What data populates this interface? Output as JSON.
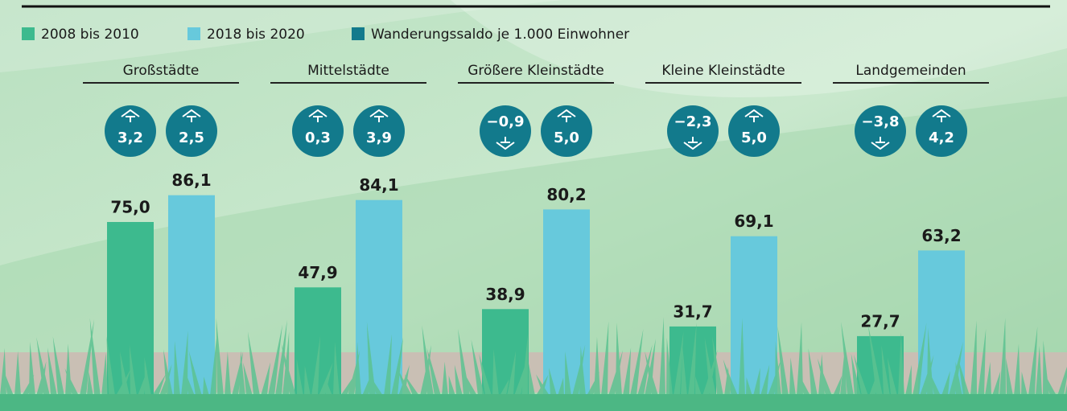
{
  "chart_data": {
    "type": "bar",
    "categories": [
      "Großstädte",
      "Mittelstädte",
      "Größere Kleinstädte",
      "Kleine Kleinstädte",
      "Landgemeinden"
    ],
    "series": [
      {
        "name": "2008 bis 2010",
        "color": "#3dba8e",
        "values": [
          75.0,
          47.9,
          38.9,
          31.7,
          27.7
        ],
        "value_labels": [
          "75,0",
          "47,9",
          "38,9",
          "31,7",
          "27,7"
        ]
      },
      {
        "name": "2018 bis 2020",
        "color": "#67c9dc",
        "values": [
          86.1,
          84.1,
          80.2,
          69.1,
          63.2
        ],
        "value_labels": [
          "86,1",
          "84,1",
          "80,2",
          "69,1",
          "63,2"
        ]
      },
      {
        "name": "Wanderungssaldo je 1.000 Einwohner",
        "color": "#127a8c",
        "values": [
          [
            3.2,
            2.5
          ],
          [
            0.3,
            3.9
          ],
          [
            -0.9,
            5.0
          ],
          [
            -2.3,
            5.0
          ],
          [
            -3.8,
            4.2
          ]
        ],
        "value_labels": [
          [
            "3,2",
            "2,5"
          ],
          [
            "0,3",
            "3,9"
          ],
          [
            "−0,9",
            "5,0"
          ],
          [
            "−2,3",
            "5,0"
          ],
          [
            "−3,8",
            "4,2"
          ]
        ]
      }
    ]
  }
}
